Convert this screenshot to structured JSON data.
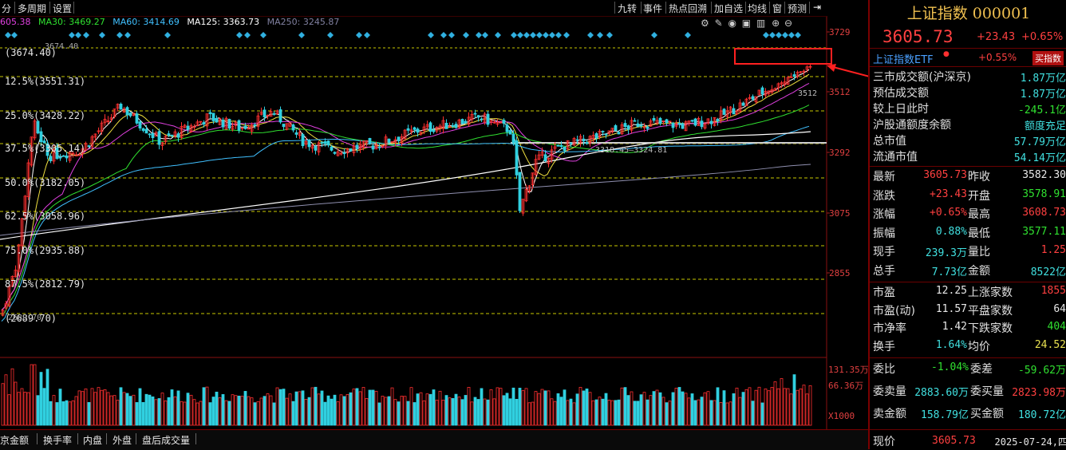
{
  "toolbar": {
    "left_items": [
      "分",
      "多周期",
      "设置"
    ],
    "right_items": [
      "九转",
      "事件",
      "热点回溯",
      "加自选",
      "均线",
      "窗",
      "预测"
    ]
  },
  "ma_legend": [
    {
      "label": "605.38",
      "color": "#e040e0"
    },
    {
      "label": "MA30: 3469.27",
      "color": "#30e030"
    },
    {
      "label": "MA60: 3414.69",
      "color": "#40c0ff"
    },
    {
      "label": "MA125: 3363.73",
      "color": "#ffffff"
    },
    {
      "label": "MA250: 3245.87",
      "color": "#8080a0"
    }
  ],
  "price_axis": [
    "3729",
    "3512",
    "3292",
    "3075",
    "2855"
  ],
  "volume_axis": [
    "131.35万",
    "66.36万",
    "X1000"
  ],
  "fib_levels": [
    {
      "label": "(3674.40)"
    },
    {
      "label": "12.5%(3551.31)"
    },
    {
      "label": "25.0%(3428.22)"
    },
    {
      "label": "37.5%(3305.14)"
    },
    {
      "label": "50.0%(3182.05)"
    },
    {
      "label": "62.5%(3058.96)"
    },
    {
      "label": "75.0%(2935.88)"
    },
    {
      "label": "87.5%(2812.79)"
    },
    {
      "label": "(2689.70)"
    }
  ],
  "chart_annotations": {
    "high_marker": "3674.40",
    "low_marker": "2689.70",
    "gap_label": "3318.45–3324.81",
    "current_label": "3512"
  },
  "bottom_tabs": [
    "京金额",
    "换手率",
    "内盘",
    "外盘",
    "盘后成交量"
  ],
  "right_panel": {
    "title": "上证指数 000001",
    "price": "3605.73",
    "change": "+23.43",
    "change_pct": "+0.65%",
    "etf": {
      "name": "上证指数ETF",
      "pct": "+0.55%",
      "button": "买指数"
    },
    "summary_rows": [
      {
        "label": "三市成交额(沪深京)",
        "value": "1.87万亿",
        "color": "cyan"
      },
      {
        "label": "预估成交额",
        "value": "1.87万亿",
        "color": "cyan"
      },
      {
        "label": "较上日此时",
        "value": "-245.1亿",
        "color": "green"
      },
      {
        "label": "沪股通额度余额",
        "value": "额度充足",
        "color": "cyan"
      },
      {
        "label": "总市值",
        "value": "57.79万亿",
        "color": "cyan"
      },
      {
        "label": "流通市值",
        "value": "54.14万亿",
        "color": "cyan"
      }
    ],
    "quote_rows": [
      {
        "l1": "最新",
        "v1": "3605.73",
        "c1": "red",
        "l2": "昨收",
        "v2": "3582.30",
        "c2": "white"
      },
      {
        "l1": "涨跌",
        "v1": "+23.43",
        "c1": "red",
        "l2": "开盘",
        "v2": "3578.91",
        "c2": "green"
      },
      {
        "l1": "涨幅",
        "v1": "+0.65%",
        "c1": "red",
        "l2": "最高",
        "v2": "3608.73",
        "c2": "red"
      },
      {
        "l1": "振幅",
        "v1": "0.88%",
        "c1": "cyan",
        "l2": "最低",
        "v2": "3577.11",
        "c2": "green"
      },
      {
        "l1": "现手",
        "v1": "239.3万",
        "c1": "cyan",
        "l2": "量比",
        "v2": "1.25",
        "c2": "red"
      },
      {
        "l1": "总手",
        "v1": "7.73亿",
        "c1": "cyan",
        "l2": "金额",
        "v2": "8522亿",
        "c2": "cyan"
      }
    ],
    "valuation_rows": [
      {
        "l1": "市盈",
        "v1": "12.25",
        "c1": "white",
        "l2": "上涨家数",
        "v2": "1855",
        "c2": "red"
      },
      {
        "l1": "市盈(动)",
        "v1": "11.57",
        "c1": "white",
        "l2": "平盘家数",
        "v2": "64",
        "c2": "white"
      },
      {
        "l1": "市净率",
        "v1": "1.42",
        "c1": "white",
        "l2": "下跌家数",
        "v2": "404",
        "c2": "green"
      },
      {
        "l1": "换手",
        "v1": "1.64%",
        "c1": "cyan",
        "l2": "均价",
        "v2": "24.52",
        "c2": "yellow"
      }
    ],
    "order_rows": [
      {
        "l1": "委比",
        "v1": "-1.04%",
        "c1": "green",
        "l2": "委差",
        "v2": "-59.62万",
        "c2": "green"
      },
      {
        "l1": "委卖量",
        "v1": "2883.60万",
        "c1": "cyan",
        "l2": "委买量",
        "v2": "2823.98万",
        "c2": "red"
      },
      {
        "l1": "卖金额",
        "v1": "158.79亿",
        "c1": "cyan",
        "l2": "买金额",
        "v2": "180.72亿",
        "c2": "cyan"
      }
    ],
    "footer": {
      "label": "现价",
      "value": "3605.73",
      "date": "2025-07-24,四"
    }
  }
}
